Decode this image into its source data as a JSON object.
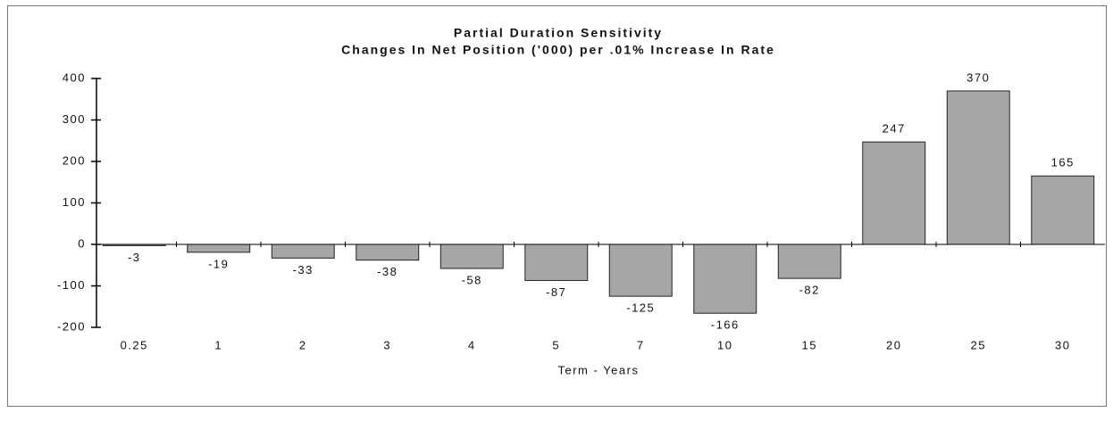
{
  "chart_data": {
    "type": "bar",
    "title": "Partial Duration Sensitivity",
    "subtitle": "Changes In Net Position ('000) per .01% Increase In Rate",
    "x_label": "Term - Years",
    "categories": [
      "0.25",
      "1",
      "2",
      "3",
      "4",
      "5",
      "7",
      "10",
      "15",
      "20",
      "25",
      "30"
    ],
    "values": [
      -3,
      -19,
      -33,
      -38,
      -58,
      -87,
      -125,
      -166,
      -82,
      247,
      370,
      165
    ],
    "color": "#a6a6a6",
    "ylim": [
      -200,
      400
    ],
    "yticks": [
      -200,
      -100,
      0,
      100,
      200,
      300,
      400
    ],
    "grid": false
  }
}
